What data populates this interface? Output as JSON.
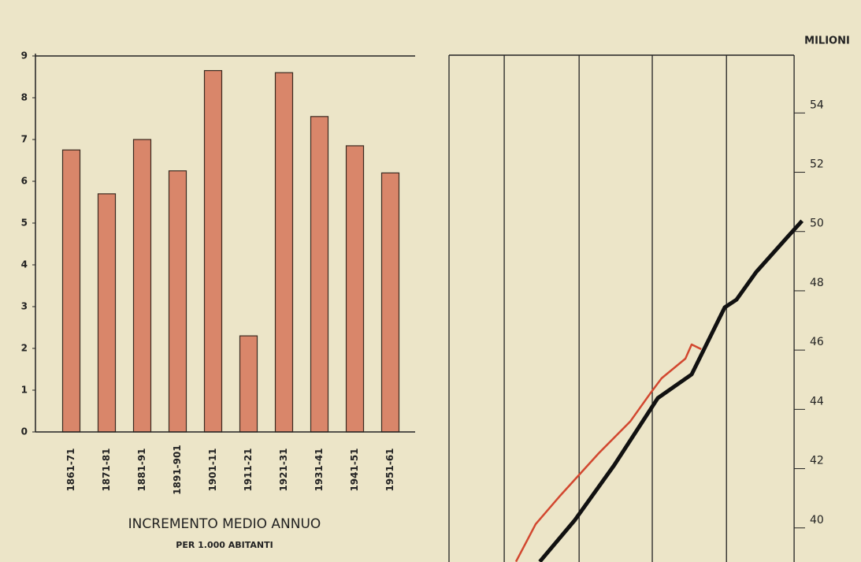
{
  "chart_data": [
    {
      "type": "bar",
      "title": "INCREMENTO MEDIO ANNUO",
      "subtitle": "PER 1.000 ABITANTI",
      "categories": [
        "1861-71",
        "1871-81",
        "1881-91",
        "1891-901",
        "1901-11",
        "1911-21",
        "1921-31",
        "1931-41",
        "1941-51",
        "1951-61"
      ],
      "values": [
        6.75,
        5.7,
        7.0,
        6.25,
        8.65,
        2.3,
        8.6,
        7.55,
        6.85,
        6.2
      ],
      "color": "#d9866a",
      "ylim": [
        0,
        9
      ],
      "yticks": [
        0,
        1,
        2,
        3,
        4,
        5,
        6,
        7,
        8,
        9
      ]
    },
    {
      "type": "line",
      "y_label": "MILIONI",
      "xlim": [
        0,
        105
      ],
      "xticks": [
        0,
        16,
        37.7,
        58.9,
        80.4,
        100
      ],
      "ylim": [
        38.85,
        55.95
      ],
      "yticks": [
        40,
        42,
        44,
        46,
        48,
        50,
        52,
        54
      ],
      "series": [
        {
          "color": "#111111",
          "x": [
            26.3,
            36.5,
            47.9,
            60.5,
            70.3,
            79.9,
            83.3,
            89.0,
            98.2,
            102.3
          ],
          "values": [
            38.86,
            40.27,
            42.12,
            44.38,
            45.18,
            47.44,
            47.7,
            48.63,
            49.83,
            50.36
          ]
        },
        {
          "color": "#d2472f",
          "x": [
            19.4,
            25.1,
            32.0,
            43.4,
            52.5,
            58.2,
            61.6,
            68.5,
            70.3,
            73.1
          ],
          "values": [
            38.86,
            40.13,
            41.06,
            42.52,
            43.59,
            44.52,
            45.05,
            45.71,
            46.19,
            46.03
          ]
        }
      ]
    }
  ]
}
